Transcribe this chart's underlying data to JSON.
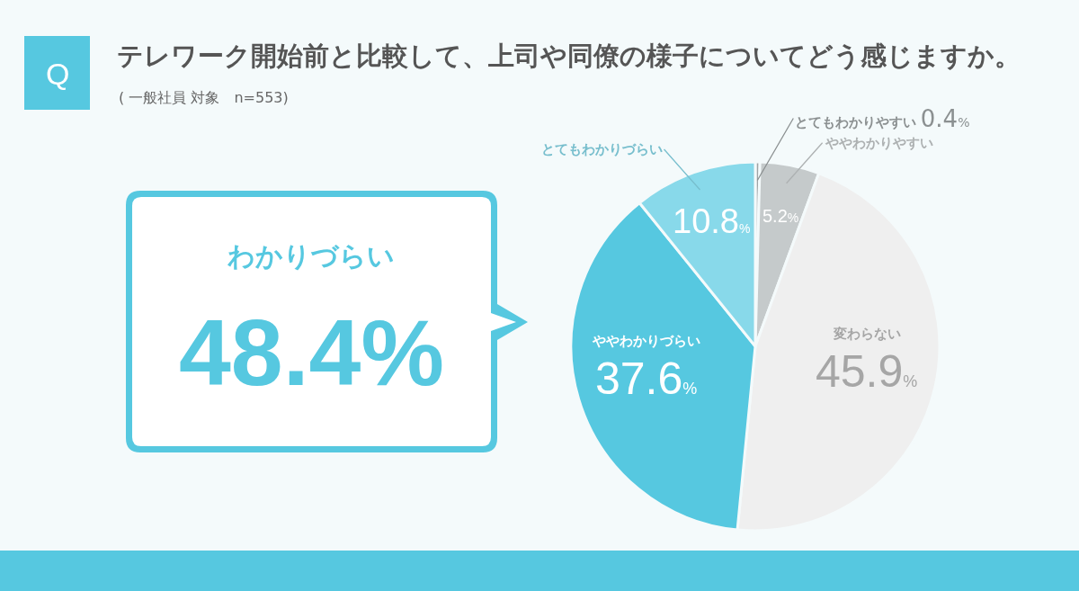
{
  "chart_data": {
    "type": "pie",
    "title": "テレワーク開始前と比較して、上司や同僚の様子についてどう感じますか。",
    "subtitle": "( 一般社員 対象　n=553)",
    "categories": [
      "とてもわかりやすい",
      "ややわかりやすい",
      "変わらない",
      "ややわかりづらい",
      "とてもわかりづらい"
    ],
    "values": [
      0.4,
      5.2,
      45.9,
      37.6,
      10.8
    ],
    "colors": [
      "#9ea4a5",
      "#c5cacb",
      "#efefef",
      "#56c8e0",
      "#88d9ea"
    ],
    "value_labels": [
      "0.4%",
      "5.2%",
      "45.9%",
      "37.6%",
      "10.8%"
    ],
    "annotations": [
      "Q",
      "わかりづらい",
      "48.4%"
    ]
  }
}
